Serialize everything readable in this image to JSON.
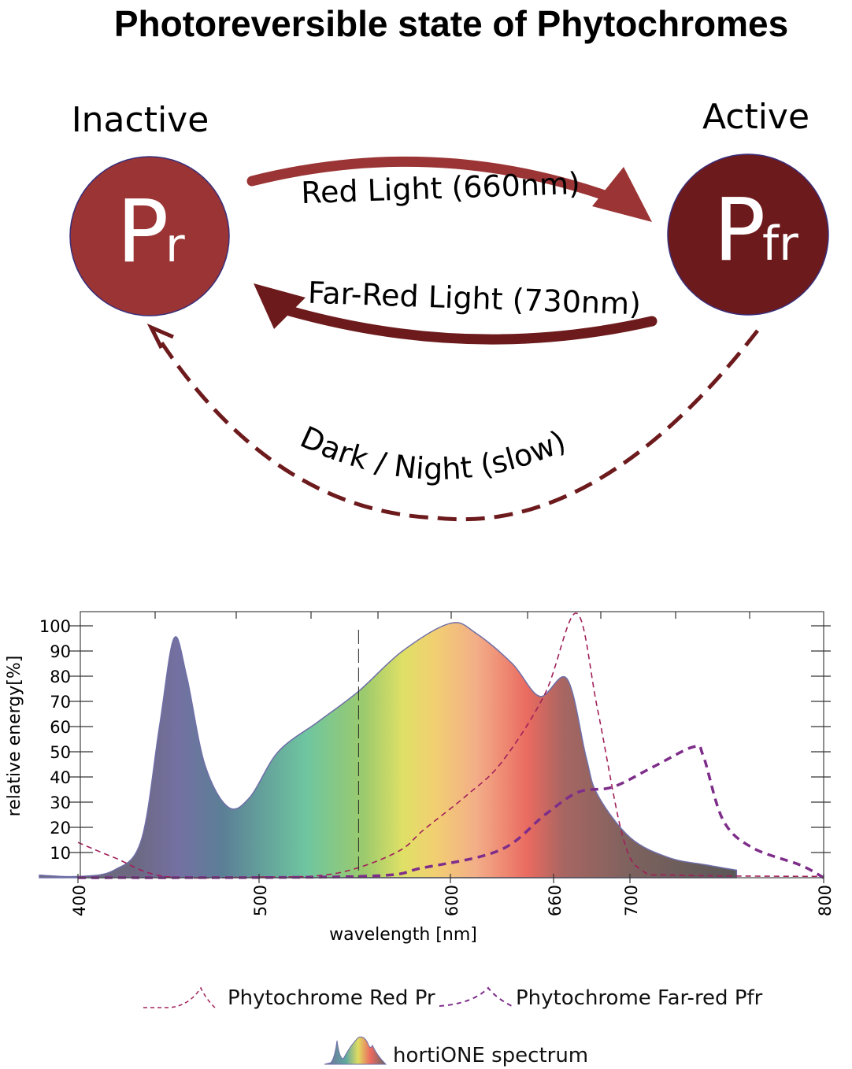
{
  "diagram": {
    "title": "Photoreversible state of Phytochromes",
    "inactive_label": "Inactive",
    "active_label": "Active",
    "pr": {
      "letter": "P",
      "sub": "r",
      "color": "#9a3435"
    },
    "pfr": {
      "letter": "P",
      "sub": "fr",
      "color": "#6d1a1d"
    },
    "red_light": "Red Light (660nm)",
    "far_red_light": "Far-Red Light (730nm)",
    "dark_night": "Dark / Night (slow)"
  },
  "chart_data": {
    "type": "area",
    "title": "",
    "xlabel": "wavelength [nm]",
    "ylabel": "relative energy[%]",
    "x_ticks": [
      "400",
      "500",
      "600",
      "660",
      "700",
      "800"
    ],
    "y_ticks": [
      "10",
      "20",
      "30",
      "40",
      "50",
      "60",
      "70",
      "80",
      "90",
      "100"
    ],
    "xlim": [
      400,
      800
    ],
    "ylim": [
      0,
      105
    ],
    "grid": false,
    "vertical_marker_nm": 552,
    "legend_position": "bottom",
    "series": [
      {
        "name": "hortiONE spectrum",
        "style": "gradient-fill",
        "color": "#6f6fa8",
        "x": [
          380,
          400,
          420,
          435,
          445,
          453,
          460,
          470,
          483,
          495,
          510,
          531,
          552,
          575,
          600,
          615,
          636,
          652,
          667,
          677,
          683,
          700,
          720,
          740,
          755
        ],
        "y": [
          1,
          0.5,
          3,
          15,
          60,
          95,
          80,
          45,
          28,
          32,
          50,
          62,
          74,
          90,
          101,
          97,
          85,
          72,
          79,
          48,
          33,
          16,
          8,
          5,
          3
        ]
      },
      {
        "name": "Phytochrome Red Pr",
        "style": "dashed-thin",
        "color": "#a0205a",
        "x": [
          400,
          420,
          448,
          500,
          531,
          552,
          574,
          586,
          610,
          630,
          655,
          672,
          683,
          696,
          706,
          725,
          800
        ],
        "y": [
          14,
          8,
          0.5,
          0.3,
          0.8,
          4,
          11,
          19,
          33,
          46,
          73,
          105,
          67,
          17,
          3,
          1,
          0.5
        ]
      },
      {
        "name": "Phytochrome Far-red Pfr",
        "style": "dashed-thick",
        "color": "#7e2e8a",
        "x": [
          400,
          552,
          586,
          629,
          655,
          673,
          691,
          712,
          733,
          738,
          748,
          763,
          788,
          800
        ],
        "y": [
          0,
          0.5,
          4,
          11,
          25,
          34,
          36,
          44,
          52,
          48,
          23,
          12,
          5,
          0
        ]
      }
    ]
  }
}
